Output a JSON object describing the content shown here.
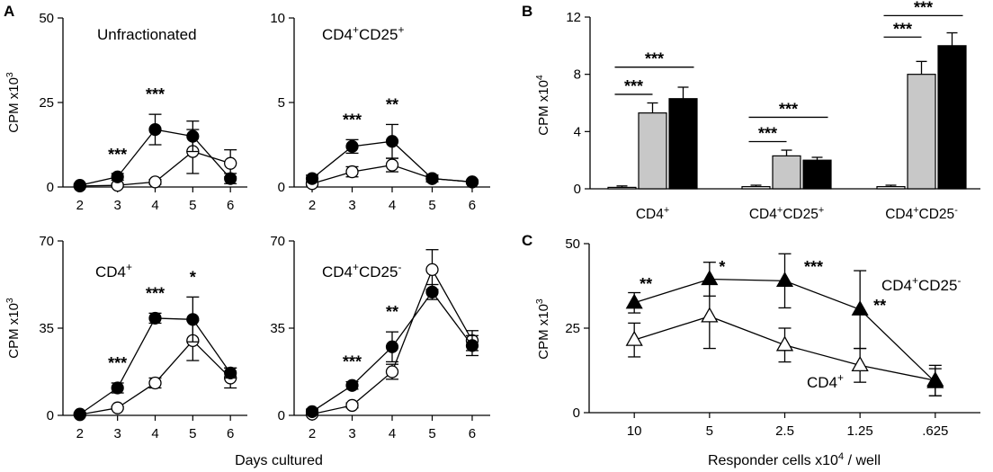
{
  "figure": {
    "panel_letters": [
      "A",
      "B",
      "C"
    ],
    "a_shared_xlabel": "Days cultured"
  },
  "chart_data": [
    {
      "id": "a1",
      "type": "line",
      "title": "Unfractionated",
      "xlabel": "",
      "ylabel": "CPM",
      "ylabel_unit": "x10",
      "ylabel_exp": "3",
      "ylim": [
        0,
        50
      ],
      "yticks": [
        "0",
        "25",
        "50"
      ],
      "x": [
        2,
        3,
        4,
        5,
        6
      ],
      "series": [
        {
          "name": "filled",
          "marker": "filled-circle",
          "values": [
            0.5,
            3,
            17,
            15,
            2.5
          ],
          "err": [
            0.5,
            1,
            4.5,
            4.5,
            1.5
          ]
        },
        {
          "name": "open",
          "marker": "open-circle",
          "values": [
            0.3,
            0.5,
            1.5,
            10.5,
            7
          ],
          "err": [
            0.3,
            0.5,
            0.7,
            6.5,
            4
          ]
        }
      ],
      "annotations": [
        {
          "x": 3,
          "text": "***"
        },
        {
          "x": 4,
          "text": "***"
        }
      ]
    },
    {
      "id": "a2",
      "type": "line",
      "title_base": "CD4",
      "title_sup1": "+",
      "title_mid": "CD25",
      "title_sup2": "+",
      "xlabel": "",
      "ylabel": "",
      "ylim": [
        0,
        10
      ],
      "yticks": [
        "0",
        "5",
        "10"
      ],
      "x": [
        2,
        3,
        4,
        5,
        6
      ],
      "series": [
        {
          "name": "filled",
          "marker": "filled-circle",
          "values": [
            0.5,
            2.4,
            2.7,
            0.5,
            0.3
          ],
          "err": [
            0.2,
            0.4,
            1,
            0.2,
            0.1
          ]
        },
        {
          "name": "open",
          "marker": "open-circle",
          "values": [
            0.2,
            0.9,
            1.3,
            0.5,
            0.3
          ],
          "err": [
            0.1,
            0.3,
            0.4,
            0.2,
            0.1
          ]
        }
      ],
      "annotations": [
        {
          "x": 3,
          "text": "***"
        },
        {
          "x": 4,
          "text": "**"
        }
      ]
    },
    {
      "id": "a3",
      "type": "line",
      "title_base": "CD4",
      "title_sup1": "+",
      "xlabel": "",
      "ylabel": "CPM",
      "ylabel_unit": "x10",
      "ylabel_exp": "3",
      "ylim": [
        0,
        70
      ],
      "yticks": [
        "0",
        "35",
        "70"
      ],
      "x": [
        2,
        3,
        4,
        5,
        6
      ],
      "series": [
        {
          "name": "filled",
          "marker": "filled-circle",
          "values": [
            0.5,
            11,
            39,
            38.5,
            17
          ],
          "err": [
            0.5,
            2,
            2,
            9,
            2
          ]
        },
        {
          "name": "open",
          "marker": "open-circle",
          "values": [
            0.3,
            3,
            13,
            30,
            15
          ],
          "err": [
            0.3,
            0.5,
            2,
            8,
            4
          ]
        }
      ],
      "annotations": [
        {
          "x": 3,
          "text": "***"
        },
        {
          "x": 4,
          "text": "***"
        },
        {
          "x": 5,
          "text": "*"
        }
      ]
    },
    {
      "id": "a4",
      "type": "line",
      "title_base": "CD4",
      "title_sup1": "+",
      "title_mid": "CD25",
      "title_sup2": "-",
      "xlabel": "",
      "ylabel": "",
      "ylim": [
        0,
        70
      ],
      "yticks": [
        "0",
        "35",
        "70"
      ],
      "x": [
        2,
        3,
        4,
        5,
        6
      ],
      "series": [
        {
          "name": "filled",
          "marker": "filled-circle",
          "values": [
            1.5,
            12,
            27.5,
            49.5,
            28
          ],
          "err": [
            1,
            1.5,
            6,
            3,
            4
          ]
        },
        {
          "name": "open",
          "marker": "open-circle",
          "values": [
            0.5,
            4,
            17.5,
            58.5,
            30
          ],
          "err": [
            0.3,
            1,
            3,
            8,
            4
          ]
        }
      ],
      "annotations": [
        {
          "x": 3,
          "text": "***"
        },
        {
          "x": 4,
          "text": "**"
        }
      ]
    },
    {
      "id": "b",
      "type": "bar",
      "title": "",
      "xlabel": "",
      "ylabel": "CPM",
      "ylabel_unit": "x10",
      "ylabel_exp": "4",
      "ylim": [
        0,
        12
      ],
      "yticks": [
        "0",
        "4",
        "8",
        "12"
      ],
      "categories": [
        {
          "base": "CD4",
          "sup1": "+"
        },
        {
          "base": "CD4",
          "sup1": "+",
          "mid": "CD25",
          "sup2": "+"
        },
        {
          "base": "CD4",
          "sup1": "+",
          "mid": "CD25",
          "sup2": "-"
        }
      ],
      "series": [
        {
          "name": "white",
          "color": "#ffffff",
          "values": [
            0.1,
            0.15,
            0.15
          ],
          "err": [
            0.1,
            0.1,
            0.1
          ]
        },
        {
          "name": "gray",
          "color": "#c8c8c8",
          "values": [
            5.3,
            2.3,
            8.0
          ],
          "err": [
            0.7,
            0.4,
            0.9
          ]
        },
        {
          "name": "black",
          "color": "#000000",
          "values": [
            6.3,
            2.0,
            10.0
          ],
          "err": [
            0.8,
            0.2,
            0.9
          ]
        }
      ],
      "annotations": [
        {
          "category": 0,
          "from": "white",
          "to": "black",
          "level": 8.5,
          "text": "***"
        },
        {
          "category": 0,
          "from": "white",
          "to": "gray",
          "level": 6.6,
          "text": "***"
        },
        {
          "category": 1,
          "from": "white",
          "to": "black",
          "level": 5.0,
          "text": "***"
        },
        {
          "category": 1,
          "from": "white",
          "to": "gray",
          "level": 3.3,
          "text": "***"
        },
        {
          "category": 2,
          "from": "white",
          "to": "black",
          "level": 12.1,
          "text": "***"
        },
        {
          "category": 2,
          "from": "white",
          "to": "gray",
          "level": 10.6,
          "text": "***"
        }
      ]
    },
    {
      "id": "c",
      "type": "line",
      "title": "",
      "xlabel": "Responder cells x10",
      "xlabel_exp": "4",
      "xlabel_tail": " / well",
      "ylabel": "CPM",
      "ylabel_unit": "x10",
      "ylabel_exp": "3",
      "ylim": [
        0,
        50
      ],
      "yticks": [
        "0",
        "25",
        "50"
      ],
      "categories": [
        "10",
        "5",
        "2.5",
        "1.25",
        ".625"
      ],
      "series": [
        {
          "name": "CD4+CD25-",
          "label_base": "CD4",
          "label_sup1": "+",
          "label_mid": "CD25",
          "label_sup2": "-",
          "marker": "filled-triangle",
          "values": [
            32.5,
            39.5,
            39,
            30.5,
            9
          ],
          "err": [
            3,
            5,
            8,
            11.5,
            4
          ]
        },
        {
          "name": "CD4+",
          "label_base": "CD4",
          "label_sup1": "+",
          "marker": "open-triangle",
          "values": [
            21.5,
            28.5,
            20,
            14,
            9.5
          ],
          "err": [
            5,
            9.5,
            5,
            5,
            4.5
          ]
        }
      ],
      "annotations": [
        {
          "x": 0,
          "text": "**"
        },
        {
          "x": 1,
          "text": "*"
        },
        {
          "x": 2,
          "text": "***"
        },
        {
          "x": 3,
          "text": "**"
        }
      ]
    }
  ]
}
